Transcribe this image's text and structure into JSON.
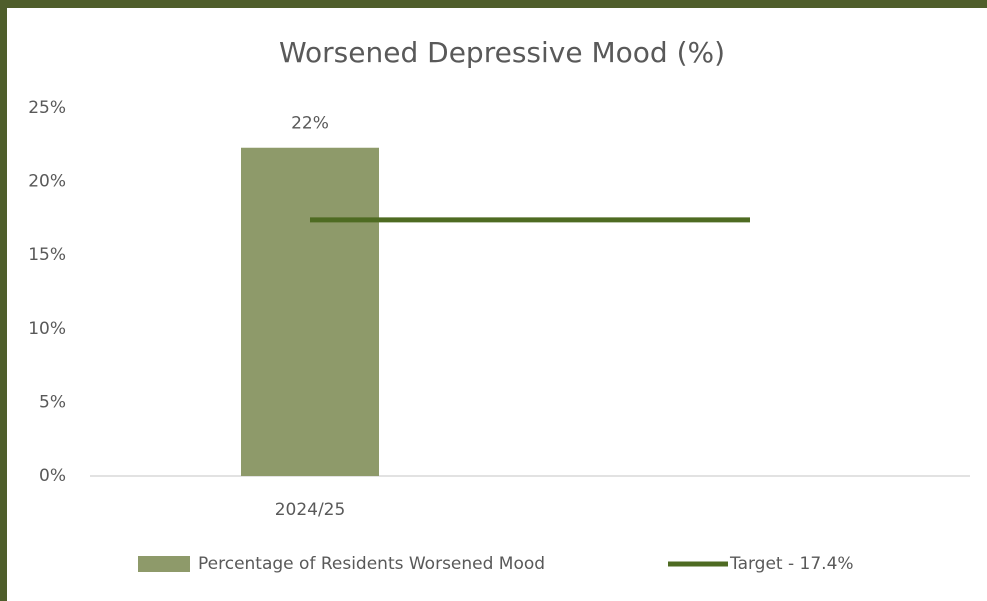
{
  "chart_data": {
    "type": "bar",
    "title": "Worsened Depressive Mood (%)",
    "categories": [
      "2024/25",
      null
    ],
    "series": [
      {
        "name": "Percentage of Residents Worsened Mood",
        "type": "bar",
        "color": "#8e9a6a",
        "values": [
          22.3,
          null
        ],
        "value_labels": [
          "22%",
          null
        ]
      },
      {
        "name": "Target - 17.4%",
        "type": "line",
        "color": "#4e6b22",
        "values": [
          17.4,
          17.4
        ]
      }
    ],
    "ylim": [
      0,
      25
    ],
    "yticks": [
      {
        "value": 0,
        "label": "0%"
      },
      {
        "value": 5,
        "label": "5%"
      },
      {
        "value": 10,
        "label": "10%"
      },
      {
        "value": 15,
        "label": "15%"
      },
      {
        "value": 20,
        "label": "20%"
      },
      {
        "value": 25,
        "label": "25%"
      }
    ],
    "grid": false,
    "legend": "bottom"
  }
}
